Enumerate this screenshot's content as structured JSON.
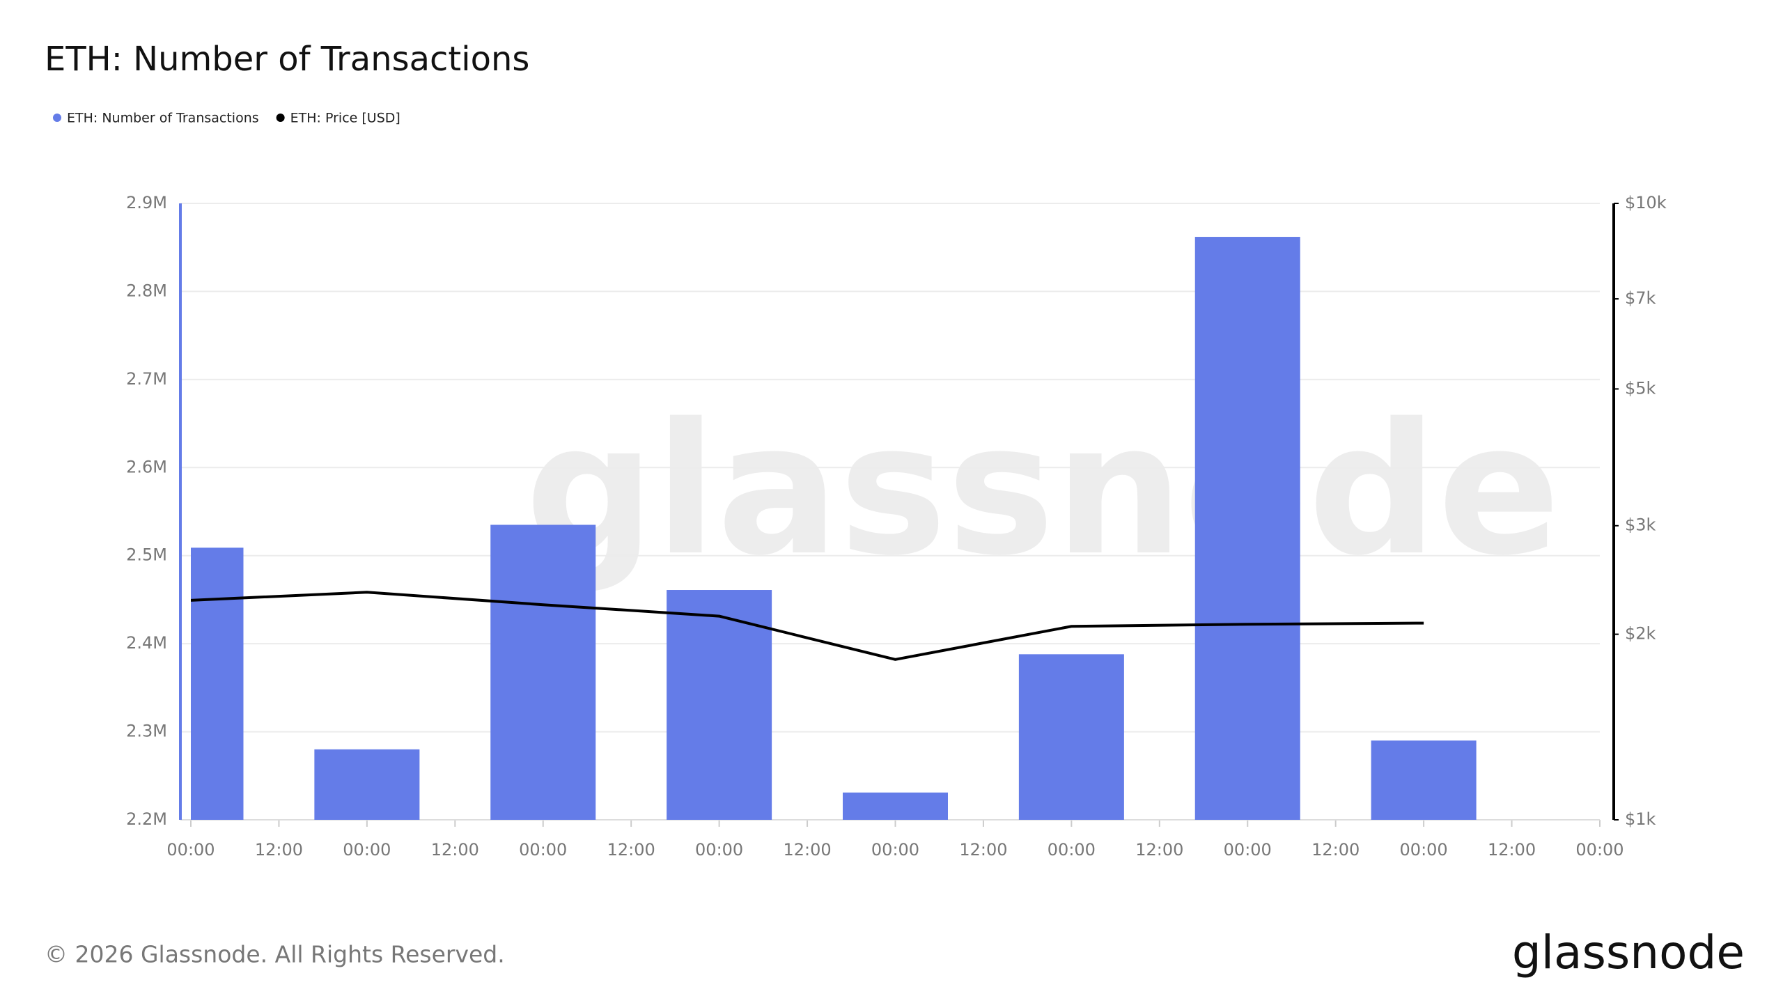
{
  "chart_data": {
    "type": "bar",
    "title": "ETH: Number of Transactions",
    "categories": [
      "00:00",
      "12:00",
      "00:00",
      "12:00",
      "00:00",
      "12:00",
      "00:00",
      "12:00",
      "00:00",
      "12:00",
      "00:00",
      "12:00",
      "00:00",
      "12:00",
      "00:00",
      "12:00",
      "00:00"
    ],
    "series": [
      {
        "name": "ETH: Number of Transactions",
        "color": "#647ce8",
        "type": "bar",
        "values": [
          2509000,
          null,
          2280000,
          null,
          2535000,
          null,
          2461000,
          null,
          2231000,
          null,
          2388000,
          null,
          2862000,
          null,
          2290000,
          null,
          null
        ]
      },
      {
        "name": "ETH: Price [USD]",
        "color": "#000000",
        "type": "line",
        "axis": "y2",
        "values": [
          2270,
          null,
          2340,
          null,
          2233,
          null,
          2140,
          null,
          1820,
          null,
          2060,
          null,
          2076,
          null,
          2085,
          null,
          null
        ]
      }
    ],
    "ylim": [
      2200000,
      2900000
    ],
    "yticks": [
      {
        "value": 2200000,
        "label": "2.2M"
      },
      {
        "value": 2300000,
        "label": "2.3M"
      },
      {
        "value": 2400000,
        "label": "2.4M"
      },
      {
        "value": 2500000,
        "label": "2.5M"
      },
      {
        "value": 2600000,
        "label": "2.6M"
      },
      {
        "value": 2700000,
        "label": "2.7M"
      },
      {
        "value": 2800000,
        "label": "2.8M"
      },
      {
        "value": 2900000,
        "label": "2.9M"
      }
    ],
    "y2lim": [
      1000,
      10000
    ],
    "y2log": true,
    "y2ticks": [
      {
        "value": 1000,
        "label": "$1k"
      },
      {
        "value": 2000,
        "label": "$2k"
      },
      {
        "value": 3000,
        "label": "$3k"
      },
      {
        "value": 5000,
        "label": "$5k"
      },
      {
        "value": 7000,
        "label": "$7k"
      },
      {
        "value": 10000,
        "label": "$10k"
      }
    ],
    "grid": true,
    "watermark": "glassnode",
    "copyright": "© 2026 Glassnode. All Rights Reserved.",
    "logo": "glassnode"
  }
}
